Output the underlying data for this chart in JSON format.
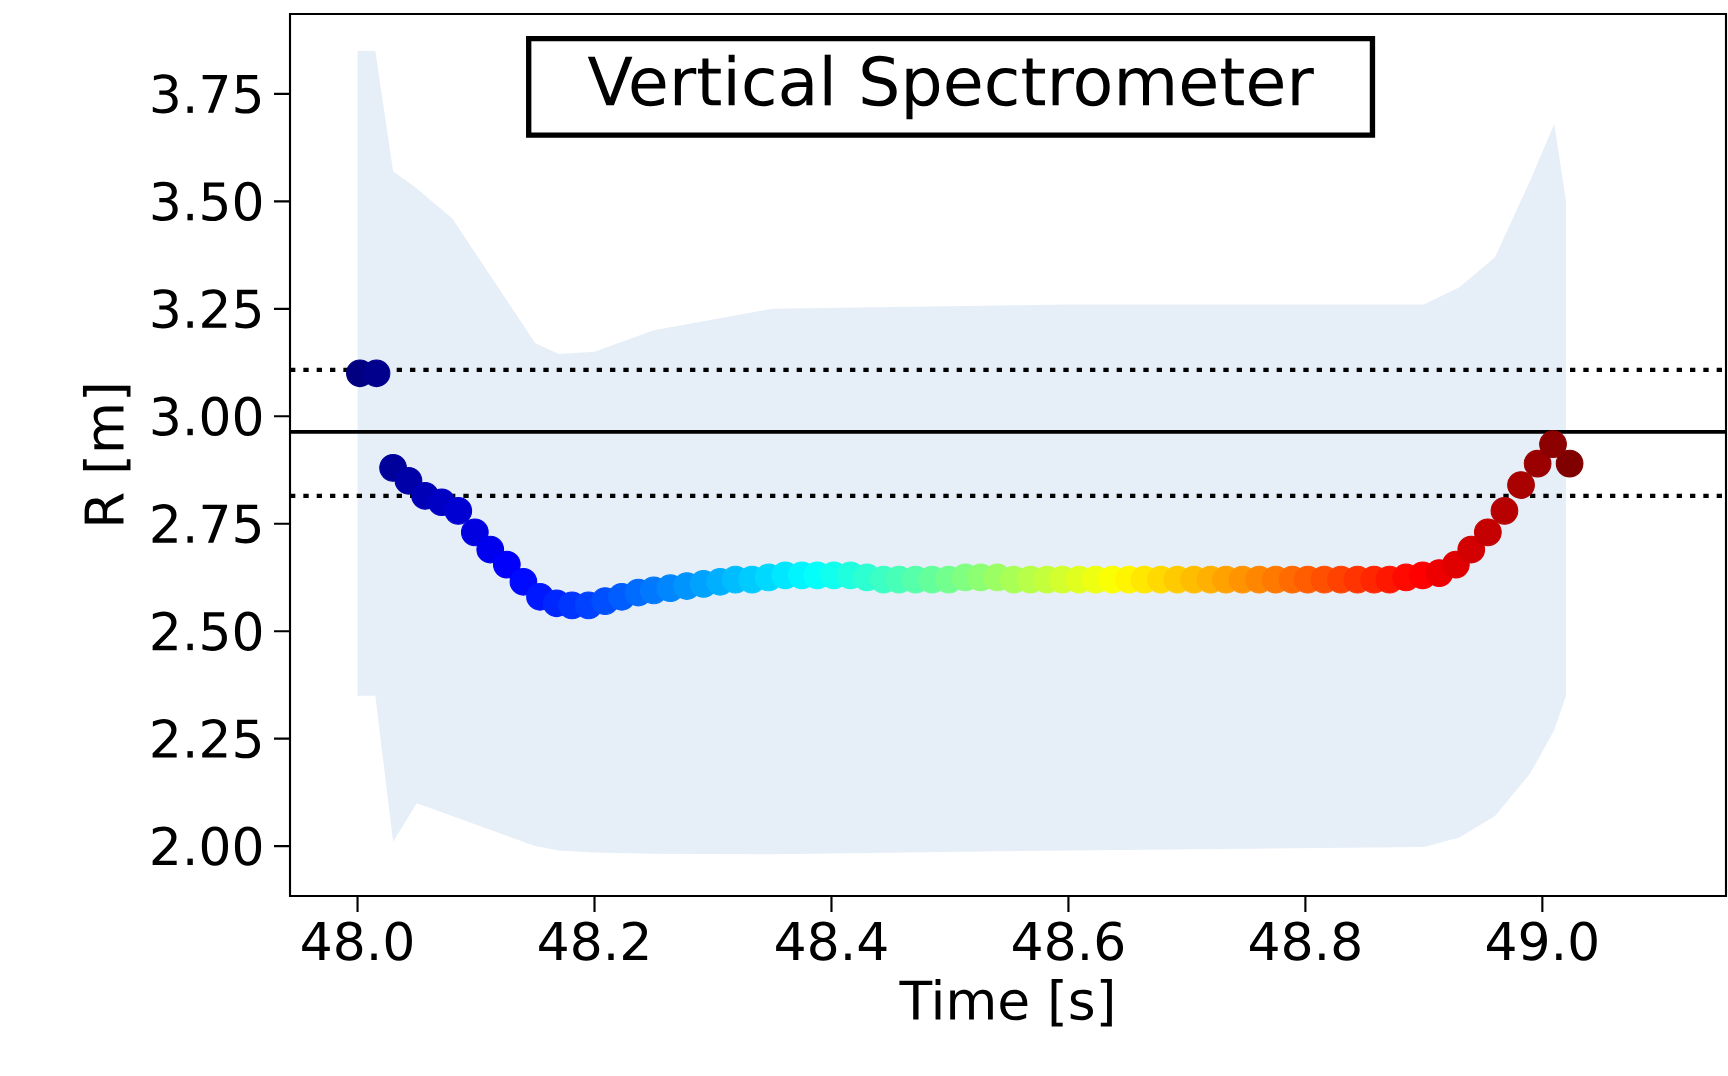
{
  "chart_data": {
    "type": "scatter",
    "title": "Vertical Spectrometer",
    "xlabel": "Time [s]",
    "ylabel": "R [m]",
    "marker": "circle",
    "xlim": [
      47.943,
      49.155
    ],
    "ylim": [
      1.884,
      3.936
    ],
    "xticks": [
      {
        "value": 48.0,
        "label": "48.0"
      },
      {
        "value": 48.2,
        "label": "48.2"
      },
      {
        "value": 48.4,
        "label": "48.4"
      },
      {
        "value": 48.6,
        "label": "48.6"
      },
      {
        "value": 48.8,
        "label": "48.8"
      },
      {
        "value": 49.0,
        "label": "49.0"
      }
    ],
    "yticks": [
      {
        "value": 2.0,
        "label": "2.00"
      },
      {
        "value": 2.25,
        "label": "2.25"
      },
      {
        "value": 2.5,
        "label": "2.50"
      },
      {
        "value": 2.75,
        "label": "2.75"
      },
      {
        "value": 3.0,
        "label": "3.00"
      },
      {
        "value": 3.25,
        "label": "3.25"
      },
      {
        "value": 3.5,
        "label": "3.50"
      },
      {
        "value": 3.75,
        "label": "3.75"
      }
    ],
    "ref_lines": [
      {
        "axis": "y",
        "value": 3.108,
        "color": "#000000",
        "line_style": "dotted"
      },
      {
        "axis": "y",
        "value": 2.964,
        "color": "#000000",
        "line_style": "solid"
      },
      {
        "axis": "y",
        "value": 2.815,
        "color": "#000000",
        "line_style": "dotted"
      }
    ],
    "series": [
      {
        "type": "area",
        "color": "#e6eef7",
        "values": [
          null,
          null,
          null,
          null,
          null,
          null,
          null,
          null,
          null,
          null,
          null,
          null,
          null,
          null,
          null,
          null,
          null
        ],
        "x": [
          48.0,
          48.015,
          48.03,
          48.05,
          48.08,
          48.15,
          48.17,
          48.2,
          48.25,
          48.35,
          48.6,
          48.9,
          48.93,
          48.96,
          48.99,
          49.01,
          49.02
        ],
        "lower": [
          2.35,
          2.35,
          2.01,
          2.1,
          2.07,
          2.0,
          1.99,
          1.985,
          1.982,
          1.981,
          1.99,
          1.998,
          2.02,
          2.07,
          2.17,
          2.27,
          2.35
        ],
        "upper": [
          3.85,
          3.85,
          3.57,
          3.53,
          3.46,
          3.17,
          3.145,
          3.15,
          3.2,
          3.25,
          3.26,
          3.26,
          3.3,
          3.37,
          3.55,
          3.68,
          3.5
        ]
      },
      {
        "x": [
          48.002,
          48.016,
          48.03,
          48.043,
          48.057,
          48.071,
          48.085,
          48.099,
          48.112,
          48.126,
          48.14,
          48.154,
          48.168,
          48.181,
          48.195,
          48.209,
          48.223,
          48.237,
          48.25,
          48.264,
          48.278,
          48.292,
          48.306,
          48.319,
          48.333,
          48.347,
          48.361,
          48.375,
          48.388,
          48.402,
          48.416,
          48.43,
          48.444,
          48.457,
          48.471,
          48.485,
          48.499,
          48.513,
          48.526,
          48.54,
          48.554,
          48.568,
          48.582,
          48.595,
          48.609,
          48.623,
          48.637,
          48.651,
          48.664,
          48.678,
          48.692,
          48.706,
          48.72,
          48.733,
          48.747,
          48.761,
          48.775,
          48.789,
          48.802,
          48.816,
          48.83,
          48.844,
          48.858,
          48.871,
          48.885,
          48.899,
          48.913,
          48.927,
          48.94,
          48.954,
          48.968,
          48.982,
          48.996,
          49.009,
          49.023
        ],
        "values": [
          3.1,
          3.1,
          2.88,
          2.85,
          2.815,
          2.8,
          2.78,
          2.73,
          2.69,
          2.655,
          2.615,
          2.58,
          2.565,
          2.56,
          2.56,
          2.57,
          2.58,
          2.59,
          2.595,
          2.6,
          2.605,
          2.61,
          2.615,
          2.62,
          2.62,
          2.625,
          2.63,
          2.63,
          2.63,
          2.63,
          2.63,
          2.625,
          2.62,
          2.62,
          2.62,
          2.62,
          2.62,
          2.625,
          2.625,
          2.625,
          2.62,
          2.62,
          2.62,
          2.62,
          2.62,
          2.62,
          2.62,
          2.62,
          2.62,
          2.62,
          2.62,
          2.62,
          2.62,
          2.62,
          2.62,
          2.62,
          2.62,
          2.62,
          2.62,
          2.62,
          2.62,
          2.62,
          2.62,
          2.62,
          2.625,
          2.63,
          2.635,
          2.655,
          2.69,
          2.73,
          2.78,
          2.84,
          2.89,
          2.935,
          2.89
        ],
        "colors": [
          "#000080",
          "#00008d",
          "#00009b",
          "#0000a9",
          "#0000b7",
          "#0000c4",
          "#0000d2",
          "#0000e0",
          "#0000ee",
          "#0000fb",
          "#000aff",
          "#0018ff",
          "#0026ff",
          "#0034ff",
          "#0042ff",
          "#004fff",
          "#005dff",
          "#006bff",
          "#0079ff",
          "#0086ff",
          "#0094ff",
          "#00a2ff",
          "#00b0ff",
          "#00bdff",
          "#00cbff",
          "#00d9ff",
          "#00e7ff",
          "#00f5ff",
          "#04fffb",
          "#11ffee",
          "#1fffe0",
          "#2dffd2",
          "#3bffc4",
          "#48ffb7",
          "#56ffa9",
          "#64ff9b",
          "#72ff8d",
          "#80ff80",
          "#8dff72",
          "#9bff64",
          "#a9ff56",
          "#b7ff48",
          "#c4ff3b",
          "#d2ff2d",
          "#e0ff1f",
          "#eeff11",
          "#fbff04",
          "#fff500",
          "#ffe700",
          "#ffd900",
          "#ffcb00",
          "#ffbd00",
          "#ffb000",
          "#ffa200",
          "#ff9400",
          "#ff8600",
          "#ff7900",
          "#ff6b00",
          "#ff5d00",
          "#ff4f00",
          "#ff4200",
          "#ff3400",
          "#ff2600",
          "#ff1800",
          "#ff0a00",
          "#ff0000",
          "#ee0000",
          "#e00000",
          "#d20000",
          "#c40000",
          "#b70000",
          "#a90000",
          "#9b0000",
          "#8d0000",
          "#800000"
        ]
      }
    ]
  }
}
